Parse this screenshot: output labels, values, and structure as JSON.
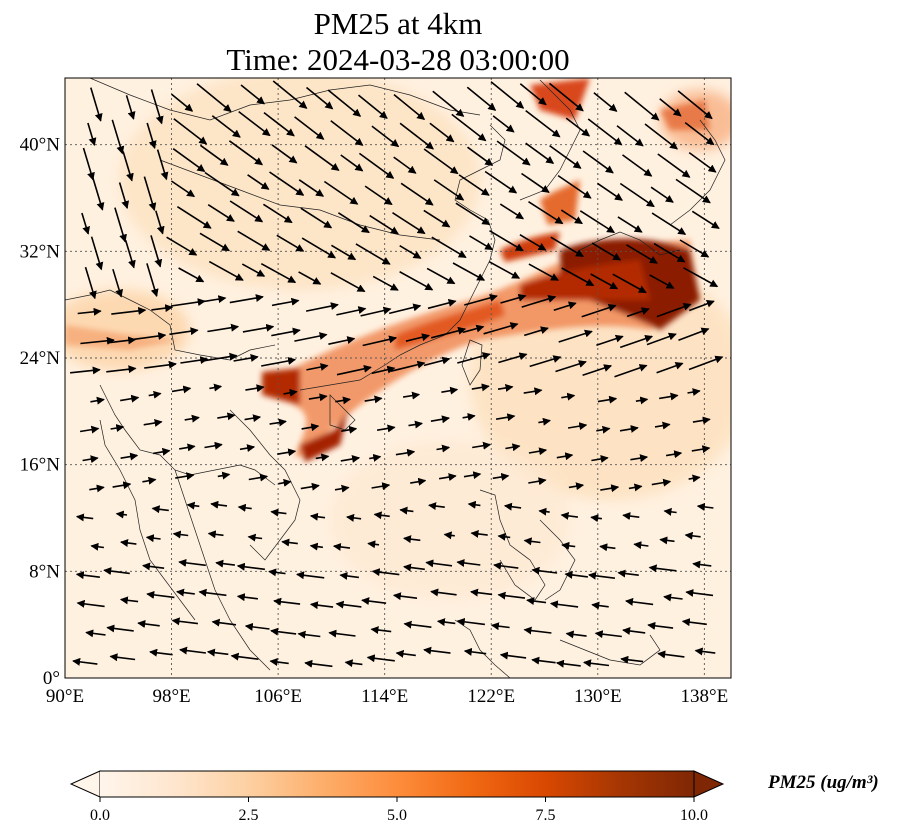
{
  "title": {
    "line1": "PM25 at 4km",
    "line2": "Time: 2024-03-28 03:00:00"
  },
  "map": {
    "lon_range": [
      90,
      140
    ],
    "lat_range": [
      0,
      45
    ],
    "lon_ticks": [
      {
        "value": 90,
        "label": "90°E"
      },
      {
        "value": 98,
        "label": "98°E"
      },
      {
        "value": 106,
        "label": "106°E"
      },
      {
        "value": 114,
        "label": "114°E"
      },
      {
        "value": 122,
        "label": "122°E"
      },
      {
        "value": 130,
        "label": "130°E"
      },
      {
        "value": 138,
        "label": "138°E"
      }
    ],
    "lat_ticks": [
      {
        "value": 0,
        "label": "0°"
      },
      {
        "value": 8,
        "label": "8°N"
      },
      {
        "value": 16,
        "label": "16°N"
      },
      {
        "value": 24,
        "label": "24°N"
      },
      {
        "value": 32,
        "label": "32°N"
      },
      {
        "value": 40,
        "label": "40°N"
      }
    ],
    "gridlines": true,
    "background_color": "#fff1e0"
  },
  "colorbar": {
    "title": "PM25 (ug/m³)",
    "min": 0.0,
    "max": 10.0,
    "ticks": [
      "0.0",
      "2.5",
      "5.0",
      "7.5",
      "10.0"
    ],
    "colors": [
      "#fff5eb",
      "#fee6ce",
      "#fdd0a2",
      "#fdae6b",
      "#fd8d3c",
      "#f16913",
      "#d94801",
      "#a63603",
      "#7f2704"
    ],
    "extend": "both"
  }
}
